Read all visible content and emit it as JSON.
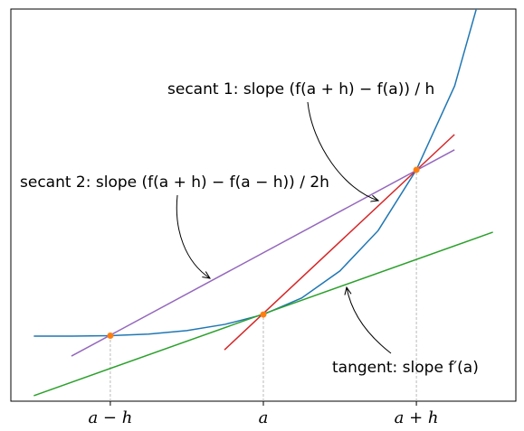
{
  "chart_data": {
    "type": "line",
    "xlim": [
      -1.65,
      1.65
    ],
    "ylim": [
      0,
      10
    ],
    "xticks": [
      {
        "value": -1,
        "label": "a − h"
      },
      {
        "value": 0,
        "label": "a"
      },
      {
        "value": 1,
        "label": "a + h"
      }
    ],
    "series": [
      {
        "color": "#1f77b4",
        "x": [
          -1.5,
          -1.25,
          -1,
          -0.75,
          -0.5,
          -0.25,
          0,
          0.25,
          0.5,
          0.75,
          1,
          1.25,
          1.5
        ],
        "values": [
          1.66,
          1.66,
          1.67,
          1.71,
          1.8,
          1.96,
          2.21,
          2.63,
          3.32,
          4.35,
          5.9,
          8.04,
          11.5
        ]
      },
      {
        "color": "#2ca02c",
        "x": [
          -1.5,
          1.5
        ],
        "values": [
          0.14,
          4.31
        ]
      },
      {
        "color": "#d62728",
        "x": [
          -0.254,
          1.249
        ],
        "values": [
          1.31,
          6.8
        ]
      },
      {
        "color": "#9467bd",
        "x": [
          -1.254,
          1.249
        ],
        "values": [
          1.15,
          6.41
        ]
      },
      {
        "type": "scatter",
        "color": "#ff7f0e",
        "x": [
          -1,
          0,
          1
        ],
        "values": [
          1.67,
          2.21,
          5.9
        ]
      }
    ],
    "annotations": [
      "secant 1: slope (f(a + h) − f(a)) / h",
      "secant 2: slope (f(a + h) − f(a − h)) / 2h",
      "tangent: slope f′(a)"
    ]
  }
}
